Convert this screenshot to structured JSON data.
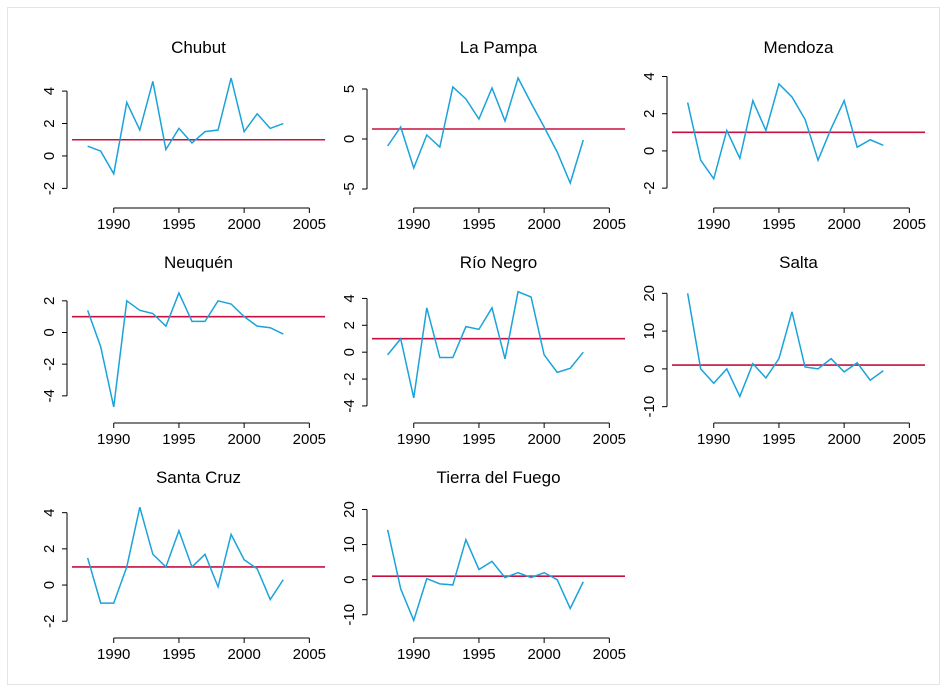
{
  "chart_data": [
    {
      "type": "line",
      "title": "Chubut",
      "x": [
        1988,
        1989,
        1990,
        1991,
        1992,
        1993,
        1994,
        1995,
        1996,
        1997,
        1998,
        1999,
        2000,
        2001,
        2002,
        2003
      ],
      "values": [
        0.6,
        0.3,
        -1.1,
        3.3,
        1.6,
        4.6,
        0.4,
        1.7,
        0.8,
        1.5,
        1.6,
        4.8,
        1.5,
        2.6,
        1.7,
        2.0
      ],
      "color": "#1aa3db",
      "xlim": [
        1986.8,
        2006.2
      ],
      "xticks": [
        1990,
        1995,
        2000,
        2005
      ],
      "ylim": [
        -2.9,
        5.3
      ],
      "yticks": [
        -2,
        0,
        2,
        4
      ],
      "reference_line": {
        "value": 1,
        "color": "#c8103f"
      }
    },
    {
      "type": "line",
      "title": "La Pampa",
      "x": [
        1988,
        1989,
        1990,
        1991,
        1992,
        1993,
        1994,
        1995,
        1996,
        1997,
        1998,
        1999,
        2000,
        2001,
        2002,
        2003
      ],
      "values": [
        -0.7,
        1.2,
        -2.9,
        0.4,
        -0.8,
        5.2,
        4.0,
        2.0,
        5.1,
        1.8,
        6.1,
        3.6,
        1.2,
        -1.3,
        -4.4,
        -0.1
      ],
      "color": "#1aa3db",
      "xlim": [
        1986.8,
        2006.2
      ],
      "xticks": [
        1990,
        1995,
        2000,
        2005
      ],
      "ylim": [
        -6.4,
        6.9
      ],
      "yticks": [
        -5,
        0,
        5
      ],
      "reference_line": {
        "value": 1,
        "color": "#c8103f"
      }
    },
    {
      "type": "line",
      "title": "Mendoza",
      "x": [
        1988,
        1989,
        1990,
        1991,
        1992,
        1993,
        1994,
        1995,
        1996,
        1997,
        1998,
        1999,
        2000,
        2001,
        2002,
        2003
      ],
      "values": [
        2.6,
        -0.5,
        -1.5,
        1.1,
        -0.4,
        2.7,
        1.1,
        3.6,
        2.9,
        1.7,
        -0.5,
        1.2,
        2.7,
        0.2,
        0.6,
        0.3
      ],
      "color": "#1aa3db",
      "xlim": [
        1986.8,
        2006.2
      ],
      "xticks": [
        1990,
        1995,
        2000,
        2005
      ],
      "ylim": [
        -2.8,
        4.35
      ],
      "yticks": [
        -2,
        0,
        2,
        4
      ],
      "reference_line": {
        "value": 1,
        "color": "#c8103f"
      }
    },
    {
      "type": "line",
      "title": "Neuquén",
      "x": [
        1988,
        1989,
        1990,
        1991,
        1992,
        1993,
        1994,
        1995,
        1996,
        1997,
        1998,
        1999,
        2000,
        2001,
        2002,
        2003
      ],
      "values": [
        1.4,
        -0.9,
        -4.7,
        2.0,
        1.4,
        1.2,
        0.4,
        2.5,
        0.7,
        0.7,
        2.0,
        1.8,
        1.0,
        0.4,
        0.3,
        -0.1
      ],
      "color": "#1aa3db",
      "xlim": [
        1986.8,
        2006.2
      ],
      "xticks": [
        1990,
        1995,
        2000,
        2005
      ],
      "ylim": [
        -5.4,
        3.0
      ],
      "yticks": [
        -4,
        -2,
        0,
        2
      ],
      "reference_line": {
        "value": 1,
        "color": "#c8103f"
      }
    },
    {
      "type": "line",
      "title": "Río Negro",
      "x": [
        1988,
        1989,
        1990,
        1991,
        1992,
        1993,
        1994,
        1995,
        1996,
        1997,
        1998,
        1999,
        2000,
        2001,
        2002,
        2003
      ],
      "values": [
        -0.2,
        1.0,
        -3.4,
        3.3,
        -0.4,
        -0.4,
        1.9,
        1.7,
        3.3,
        -0.5,
        4.5,
        4.1,
        -0.2,
        -1.5,
        -1.2,
        0.0
      ],
      "color": "#1aa3db",
      "xlim": [
        1986.8,
        2006.2
      ],
      "xticks": [
        1990,
        1995,
        2000,
        2005
      ],
      "ylim": [
        -4.9,
        5.0
      ],
      "yticks": [
        -4,
        -2,
        0,
        2,
        4
      ],
      "reference_line": {
        "value": 1,
        "color": "#c8103f"
      }
    },
    {
      "type": "line",
      "title": "Salta",
      "x": [
        1988,
        1989,
        1990,
        1991,
        1992,
        1993,
        1994,
        1995,
        1996,
        1997,
        1998,
        1999,
        2000,
        2001,
        2002,
        2003
      ],
      "values": [
        20,
        0,
        -3.8,
        0,
        -7.3,
        1.4,
        -2.4,
        2.7,
        15.1,
        0.5,
        0,
        2.7,
        -0.8,
        1.6,
        -3.0,
        -0.5
      ],
      "color": "#1aa3db",
      "xlim": [
        1986.8,
        2006.2
      ],
      "xticks": [
        1990,
        1995,
        2000,
        2005
      ],
      "ylim": [
        -13.0,
        22.2
      ],
      "yticks": [
        -10,
        0,
        10,
        20
      ],
      "reference_line": {
        "value": 1,
        "color": "#c8103f"
      }
    },
    {
      "type": "line",
      "title": "Santa Cruz",
      "x": [
        1988,
        1989,
        1990,
        1991,
        1992,
        1993,
        1994,
        1995,
        1996,
        1997,
        1998,
        1999,
        2000,
        2001,
        2002,
        2003
      ],
      "values": [
        1.5,
        -1.0,
        -1.0,
        1.0,
        4.3,
        1.7,
        1.0,
        3.0,
        1.0,
        1.7,
        -0.1,
        2.8,
        1.4,
        0.9,
        -0.8,
        0.3
      ],
      "color": "#1aa3db",
      "xlim": [
        1986.8,
        2006.2
      ],
      "xticks": [
        1990,
        1995,
        2000,
        2005
      ],
      "ylim": [
        -2.65,
        4.7
      ],
      "yticks": [
        -2,
        0,
        2,
        4
      ],
      "reference_line": {
        "value": 1,
        "color": "#c8103f"
      }
    },
    {
      "type": "line",
      "title": "Tierra del Fuego",
      "x": [
        1988,
        1989,
        1990,
        1991,
        1992,
        1993,
        1994,
        1995,
        1996,
        1997,
        1998,
        1999,
        2000,
        2001,
        2002,
        2003
      ],
      "values": [
        14.2,
        -2.6,
        -11.6,
        0.3,
        -1.2,
        -1.5,
        11.4,
        2.9,
        5.2,
        0.6,
        2.0,
        0.6,
        2.0,
        0,
        -8.2,
        -0.6
      ],
      "color": "#1aa3db",
      "xlim": [
        1986.8,
        2006.2
      ],
      "xticks": [
        1990,
        1995,
        2000,
        2005
      ],
      "ylim": [
        -15.2,
        22.7
      ],
      "yticks": [
        -10,
        0,
        10,
        20
      ],
      "reference_line": {
        "value": 1,
        "color": "#c8103f"
      }
    }
  ]
}
